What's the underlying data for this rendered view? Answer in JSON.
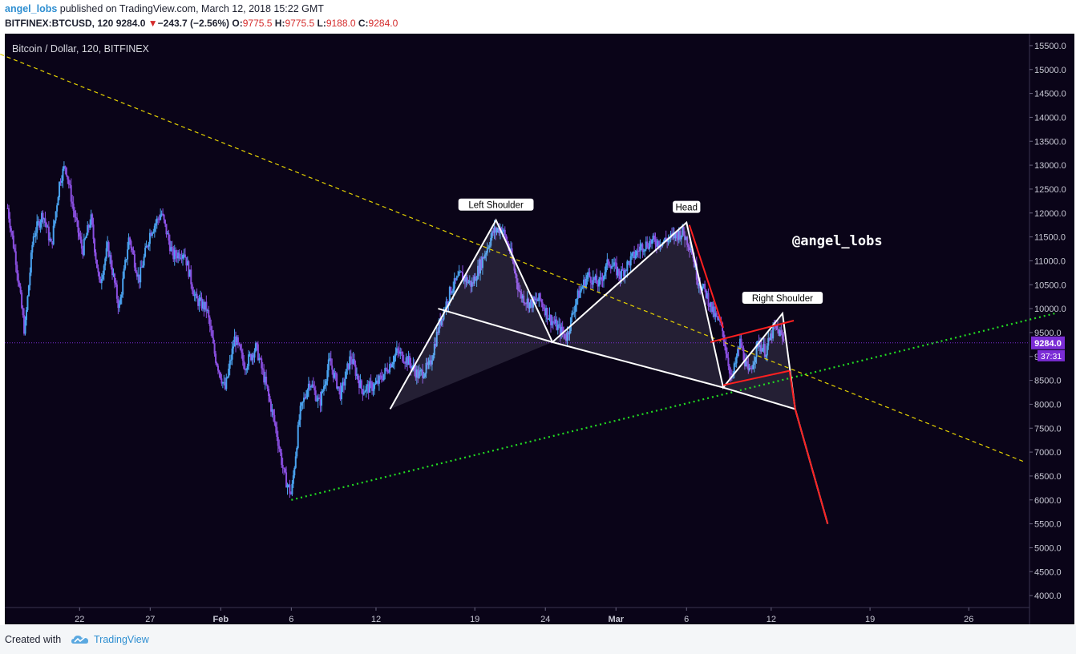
{
  "header": {
    "author": "angel_lobs",
    "published": " published on TradingView.com, March 12, 2018 15:22 GMT",
    "symbol": "BITFINEX:BTCUSD, 120",
    "last": "9284.0",
    "change": "−243.7 (−2.56%)",
    "o_label": "O:",
    "o_value": "9775.5",
    "h_label": "H:",
    "h_value": "9775.5",
    "l_label": "L:",
    "l_value": "9188.0",
    "c_label": "C:",
    "c_value": "9284.0"
  },
  "footer": {
    "created_with": "Created with",
    "brand": "TradingView"
  },
  "colors": {
    "background": "#0a0418",
    "candle_up": "#4aa3f0",
    "candle_down": "#8a4fe0",
    "pattern_line": "#ffffff",
    "target_line": "#ff2020",
    "resistance": "#e6d200",
    "support": "#22dd22",
    "price_line": "#7b2cd6"
  },
  "chart_data": {
    "type": "candlestick",
    "title": "Bitcoin / Dollar, 120, BITFINEX",
    "watermark": "@angel_lobs",
    "y_ticks": [
      15500,
      15000,
      14500,
      14000,
      13500,
      13000,
      12500,
      12000,
      11500,
      11000,
      10500,
      10000,
      9500,
      9000,
      8500,
      8000,
      7500,
      7000,
      6500,
      6000,
      5500,
      5000,
      4500,
      4000
    ],
    "y_range": [
      3750,
      15750
    ],
    "x_ticks": [
      "22",
      "27",
      "Feb",
      "6",
      "12",
      "19",
      "24",
      "Mar",
      "6",
      "12",
      "19",
      "26"
    ],
    "x_tick_days": [
      22,
      27,
      32,
      37,
      43,
      50,
      55,
      60,
      65,
      71,
      78,
      85
    ],
    "x_range_days": [
      16.7,
      89.3
    ],
    "current_price": "9284.0",
    "countdown": "37:31",
    "price_path": [
      [
        16.9,
        12100
      ],
      [
        17.5,
        11000
      ],
      [
        18.1,
        9500
      ],
      [
        18.7,
        11500
      ],
      [
        19.4,
        12000
      ],
      [
        20.0,
        11300
      ],
      [
        20.6,
        12700
      ],
      [
        21.0,
        13000
      ],
      [
        21.6,
        12000
      ],
      [
        22.2,
        11200
      ],
      [
        22.8,
        11900
      ],
      [
        23.4,
        10500
      ],
      [
        24.0,
        11300
      ],
      [
        24.8,
        10000
      ],
      [
        25.5,
        11500
      ],
      [
        26.2,
        10600
      ],
      [
        27.0,
        11600
      ],
      [
        27.8,
        12000
      ],
      [
        28.6,
        11100
      ],
      [
        29.4,
        11200
      ],
      [
        30.2,
        10200
      ],
      [
        31.0,
        10000
      ],
      [
        31.6,
        9000
      ],
      [
        32.3,
        8300
      ],
      [
        33.0,
        9400
      ],
      [
        33.7,
        8800
      ],
      [
        34.5,
        9200
      ],
      [
        35.2,
        8400
      ],
      [
        35.9,
        7500
      ],
      [
        36.5,
        6500
      ],
      [
        37.0,
        6100
      ],
      [
        37.6,
        7800
      ],
      [
        38.3,
        8500
      ],
      [
        39.0,
        8000
      ],
      [
        39.7,
        8900
      ],
      [
        40.5,
        8200
      ],
      [
        41.2,
        9000
      ],
      [
        42.0,
        8300
      ],
      [
        43.0,
        8400
      ],
      [
        43.7,
        8700
      ],
      [
        44.5,
        9100
      ],
      [
        45.3,
        8900
      ],
      [
        46.0,
        8600
      ],
      [
        46.8,
        8800
      ],
      [
        47.5,
        9700
      ],
      [
        48.3,
        10400
      ],
      [
        49.0,
        10700
      ],
      [
        49.8,
        10500
      ],
      [
        50.5,
        11000
      ],
      [
        51.3,
        11600
      ],
      [
        51.9,
        11700
      ],
      [
        52.5,
        11200
      ],
      [
        53.2,
        10300
      ],
      [
        53.9,
        10100
      ],
      [
        54.6,
        10200
      ],
      [
        55.3,
        9800
      ],
      [
        55.9,
        9600
      ],
      [
        56.5,
        9400
      ],
      [
        57.2,
        10200
      ],
      [
        58.0,
        10700
      ],
      [
        58.8,
        10500
      ],
      [
        59.5,
        11000
      ],
      [
        60.3,
        10700
      ],
      [
        61.0,
        11000
      ],
      [
        61.8,
        11300
      ],
      [
        62.5,
        11400
      ],
      [
        63.3,
        11400
      ],
      [
        64.0,
        11500
      ],
      [
        64.7,
        11600
      ],
      [
        65.3,
        11300
      ],
      [
        65.8,
        10600
      ],
      [
        66.4,
        10300
      ],
      [
        66.9,
        9900
      ],
      [
        67.5,
        9600
      ],
      [
        68.2,
        8500
      ],
      [
        68.8,
        9300
      ],
      [
        69.4,
        8600
      ],
      [
        70.1,
        9300
      ],
      [
        70.6,
        9100
      ],
      [
        71.2,
        9600
      ],
      [
        71.6,
        9500
      ],
      [
        71.9,
        9284
      ]
    ],
    "lines": {
      "resistance": [
        [
          14.0,
          15600
        ],
        [
          88.9,
          6800
        ]
      ],
      "support": [
        [
          37.0,
          6000
        ],
        [
          91.1,
          9900
        ]
      ],
      "neckline": [
        [
          47.4,
          10000
        ],
        [
          55.5,
          9300
        ],
        [
          67.6,
          8350
        ],
        [
          72.7,
          7900
        ]
      ],
      "pattern": [
        [
          44.0,
          7900
        ],
        [
          51.5,
          11850
        ],
        [
          55.5,
          9300
        ],
        [
          65.0,
          11800
        ],
        [
          67.6,
          8350
        ],
        [
          71.8,
          9900
        ],
        [
          72.7,
          7900
        ],
        [
          75.0,
          5500
        ]
      ],
      "target_head": [
        [
          65.2,
          11750
        ],
        [
          67.6,
          9600
        ]
      ],
      "target_breakdown": [
        [
          72.7,
          7900
        ],
        [
          75.0,
          5500
        ]
      ],
      "wedge_upper": [
        [
          66.7,
          9300
        ],
        [
          72.6,
          9750
        ]
      ],
      "wedge_lower": [
        [
          67.6,
          8400
        ],
        [
          72.3,
          8700
        ]
      ],
      "breakdown": [
        [
          72.3,
          8700
        ],
        [
          72.7,
          7900
        ]
      ]
    },
    "labels": [
      {
        "text": "Left Shoulder",
        "day": 51.5,
        "price": 11850
      },
      {
        "text": "Head",
        "day": 65.0,
        "price": 11800
      },
      {
        "text": "Right Shoulder",
        "day": 71.8,
        "price": 9900
      }
    ]
  }
}
